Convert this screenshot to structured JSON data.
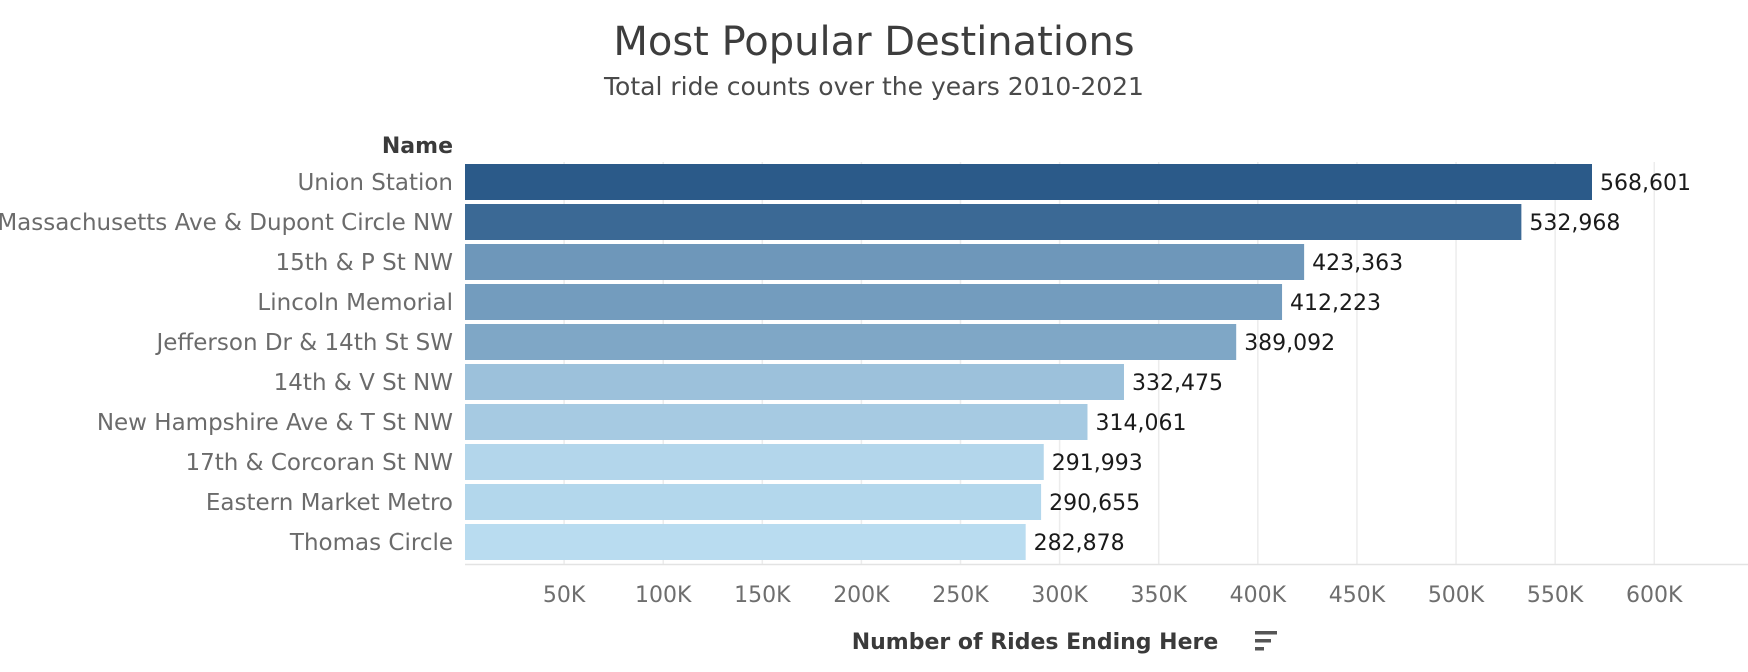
{
  "chart_data": {
    "type": "bar",
    "orientation": "horizontal",
    "title": "Most Popular Destinations",
    "subtitle": "Total ride counts over the years 2010-2021",
    "category_header": "Name",
    "xlabel": "Number of Rides Ending Here",
    "ylabel": "",
    "categories": [
      "Union Station",
      "Massachusetts Ave & Dupont Circle NW",
      "15th & P St NW",
      "Lincoln Memorial",
      "Jefferson Dr & 14th St SW",
      "14th & V St NW",
      "New Hampshire Ave & T St NW",
      "17th & Corcoran St NW",
      "Eastern Market Metro",
      "Thomas Circle"
    ],
    "values": [
      568601,
      532968,
      423363,
      412223,
      389092,
      332475,
      314061,
      291993,
      290655,
      282878
    ],
    "value_labels": [
      "568,601",
      "532,968",
      "423,363",
      "412,223",
      "389,092",
      "332,475",
      "314,061",
      "291,993",
      "290,655",
      "282,878"
    ],
    "xlim": [
      0,
      650000
    ],
    "x_ticks": [
      50000,
      100000,
      150000,
      200000,
      250000,
      300000,
      350000,
      400000,
      450000,
      500000,
      550000,
      600000
    ],
    "x_tick_labels": [
      "50K",
      "100K",
      "150K",
      "200K",
      "250K",
      "300K",
      "350K",
      "400K",
      "450K",
      "500K",
      "550K",
      "600K"
    ],
    "grid": "vertical",
    "legend": "none",
    "color_scale": {
      "low": "#b9dcf0",
      "high": "#2b5a89"
    },
    "sort_icon": "sort-descending-icon"
  }
}
